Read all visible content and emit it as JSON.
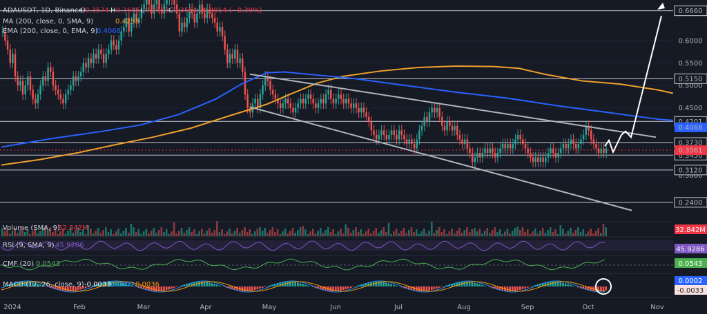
{
  "header": {
    "symbol_line": "ADAUSDT, 1D, Binance",
    "o_label": "O",
    "o_value": "0.3574",
    "h_label": "H",
    "h_value": "0.3685",
    "l_label": "L",
    "l_value": "0.3533",
    "c_label": "C",
    "c_value": "0.3561",
    "change": "−0.0014 (−0.39%)",
    "ma_label": "MA (200, close, 0, SMA, 9)",
    "ma_value": "0.4255",
    "ema_label": "EMA (200, close, 0, EMA, 9)",
    "ema_value": "0.4068"
  },
  "panes": {
    "volume_label": "Volume (SMA, 9)",
    "volume_value": "32.842M",
    "rsi_label": "RSI (9, SMA, 9)",
    "rsi_value": "45.9286",
    "cmf_label": "CMF (20)",
    "cmf_value": "0.0543",
    "macd_label": "MACD (12, 26, close, 9)",
    "macd_v1": "-0.0033",
    "macd_v2": "0.0002",
    "macd_v3": "0.0036"
  },
  "chart_data": {
    "type": "line",
    "title": "ADAUSDT, 1D, Binance",
    "price_ylim": [
      0.2,
      0.69
    ],
    "y_ticks": [
      "0.6000",
      "0.5500",
      "0.5000",
      "0.4500",
      "0.3500",
      "0.3000"
    ],
    "x_ticks": [
      "2024",
      "Feb",
      "Mar",
      "Apr",
      "May",
      "Jun",
      "Jul",
      "Aug",
      "Sep",
      "Oct",
      "Nov"
    ],
    "levels": [
      {
        "value": 0.666,
        "label": "0.6660"
      },
      {
        "value": 0.515,
        "label": "0.5150"
      },
      {
        "value": 0.4201,
        "label": "0.4201"
      },
      {
        "value": 0.373,
        "label": "0.3730"
      },
      {
        "value": 0.345,
        "label": "0.3450"
      },
      {
        "value": 0.312,
        "label": "0.3120"
      },
      {
        "value": 0.24,
        "label": "0.2400"
      }
    ],
    "last_price": {
      "value": 0.3561,
      "label": "0.3561",
      "color": "#f23645"
    },
    "ema_tag": {
      "value": 0.4068,
      "label": "0.4068",
      "color": "#2962ff"
    },
    "series": [
      {
        "name": "MA (200, close, 0, SMA, 9)",
        "color": "#f0a02a",
        "points": [
          [
            0,
            0.323
          ],
          [
            15,
            0.335
          ],
          [
            30,
            0.35
          ],
          [
            45,
            0.368
          ],
          [
            60,
            0.385
          ],
          [
            75,
            0.405
          ],
          [
            90,
            0.432
          ],
          [
            105,
            0.458
          ],
          [
            115,
            0.482
          ],
          [
            125,
            0.505
          ],
          [
            135,
            0.52
          ],
          [
            150,
            0.532
          ],
          [
            165,
            0.54
          ],
          [
            180,
            0.543
          ],
          [
            195,
            0.542
          ],
          [
            205,
            0.538
          ],
          [
            215,
            0.525
          ],
          [
            230,
            0.51
          ],
          [
            245,
            0.503
          ],
          [
            260,
            0.49
          ],
          [
            272,
            0.475
          ],
          [
            285,
            0.448
          ],
          [
            296,
            0.423
          ]
        ]
      },
      {
        "name": "EMA (200, close, 0, EMA, 9)",
        "color": "#2962ff",
        "points": [
          [
            0,
            0.363
          ],
          [
            20,
            0.382
          ],
          [
            40,
            0.398
          ],
          [
            55,
            0.412
          ],
          [
            70,
            0.435
          ],
          [
            85,
            0.47
          ],
          [
            95,
            0.503
          ],
          [
            105,
            0.528
          ],
          [
            112,
            0.53
          ],
          [
            125,
            0.523
          ],
          [
            140,
            0.515
          ],
          [
            160,
            0.5
          ],
          [
            180,
            0.485
          ],
          [
            200,
            0.472
          ],
          [
            220,
            0.455
          ],
          [
            240,
            0.44
          ],
          [
            260,
            0.425
          ],
          [
            280,
            0.416
          ],
          [
            296,
            0.4068
          ]
        ]
      }
    ],
    "candles_close": [
      0.62,
      0.6,
      0.58,
      0.55,
      0.57,
      0.52,
      0.5,
      0.51,
      0.48,
      0.5,
      0.52,
      0.49,
      0.47,
      0.46,
      0.48,
      0.5,
      0.52,
      0.51,
      0.54,
      0.53,
      0.5,
      0.49,
      0.48,
      0.47,
      0.46,
      0.48,
      0.49,
      0.5,
      0.52,
      0.51,
      0.52,
      0.53,
      0.55,
      0.54,
      0.56,
      0.55,
      0.57,
      0.56,
      0.58,
      0.57,
      0.55,
      0.57,
      0.58,
      0.6,
      0.59,
      0.58,
      0.6,
      0.62,
      0.63,
      0.65,
      0.62,
      0.64,
      0.66,
      0.64,
      0.65,
      0.67,
      0.68,
      0.69,
      0.68,
      0.66,
      0.68,
      0.69,
      0.67,
      0.66,
      0.68,
      0.69,
      0.7,
      0.69,
      0.68,
      0.66,
      0.62,
      0.64,
      0.63,
      0.65,
      0.67,
      0.66,
      0.64,
      0.66,
      0.68,
      0.66,
      0.65,
      0.67,
      0.66,
      0.65,
      0.64,
      0.62,
      0.63,
      0.61,
      0.58,
      0.55,
      0.57,
      0.56,
      0.58,
      0.55,
      0.56,
      0.53,
      0.48,
      0.45,
      0.44,
      0.46,
      0.47,
      0.45,
      0.48,
      0.5,
      0.52,
      0.51,
      0.49,
      0.48,
      0.47,
      0.46,
      0.45,
      0.46,
      0.47,
      0.46,
      0.45,
      0.44,
      0.45,
      0.46,
      0.47,
      0.46,
      0.47,
      0.48,
      0.47,
      0.46,
      0.45,
      0.46,
      0.47,
      0.46,
      0.48,
      0.49,
      0.47,
      0.46,
      0.47,
      0.48,
      0.47,
      0.46,
      0.47,
      0.46,
      0.45,
      0.46,
      0.45,
      0.44,
      0.45,
      0.44,
      0.43,
      0.42,
      0.4,
      0.39,
      0.38,
      0.39,
      0.4,
      0.39,
      0.38,
      0.39,
      0.4,
      0.39,
      0.38,
      0.4,
      0.39,
      0.38,
      0.37,
      0.38,
      0.37,
      0.36,
      0.38,
      0.4,
      0.41,
      0.43,
      0.42,
      0.44,
      0.45,
      0.44,
      0.45,
      0.43,
      0.41,
      0.4,
      0.42,
      0.41,
      0.4,
      0.41,
      0.39,
      0.38,
      0.37,
      0.38,
      0.36,
      0.35,
      0.33,
      0.34,
      0.35,
      0.34,
      0.35,
      0.36,
      0.35,
      0.36,
      0.35,
      0.34,
      0.35,
      0.36,
      0.37,
      0.36,
      0.37,
      0.36,
      0.37,
      0.38,
      0.39,
      0.38,
      0.37,
      0.36,
      0.35,
      0.34,
      0.33,
      0.34,
      0.33,
      0.34,
      0.33,
      0.34,
      0.35,
      0.36,
      0.35,
      0.34,
      0.35,
      0.36,
      0.37,
      0.36,
      0.37,
      0.38,
      0.37,
      0.36,
      0.37,
      0.38,
      0.39,
      0.41,
      0.4,
      0.38,
      0.37,
      0.36,
      0.35,
      0.36,
      0.35,
      0.36
    ]
  }
}
